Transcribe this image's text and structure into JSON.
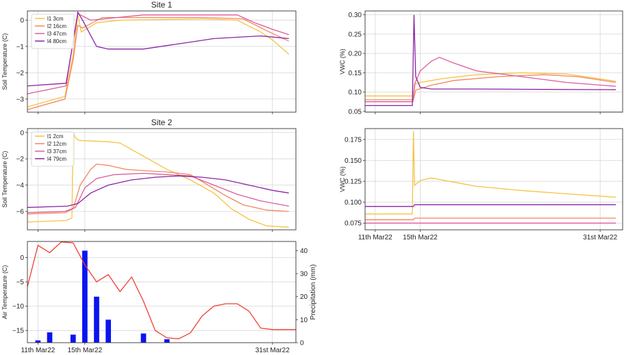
{
  "figure": {
    "panels": [
      {
        "id": "p1",
        "title": "Site 1",
        "ylabel": "Soil Temperature (C)",
        "yticks": [
          "0",
          "−1",
          "−2",
          "−3"
        ]
      },
      {
        "id": "p2",
        "title": "",
        "ylabel": "VWC (%)",
        "yticks": [
          "0.30",
          "0.25",
          "0.20",
          "0.15",
          "0.10",
          "0.05"
        ]
      },
      {
        "id": "p3",
        "title": "Site 2",
        "ylabel": "Soil Temperature (C)",
        "yticks": [
          "0",
          "−2",
          "−4",
          "−6"
        ]
      },
      {
        "id": "p4",
        "title": "",
        "ylabel": "VWC (%)",
        "yticks": [
          "0.175",
          "0.150",
          "0.125",
          "0.100",
          "0.075"
        ],
        "xticks": [
          "11th Mar22",
          "15th Mar22",
          "31st Mar22"
        ]
      },
      {
        "id": "p5",
        "title": "",
        "ylabel": "Air Temperature (C)",
        "ylabel_right": "Precipitation (mm)",
        "yticks": [
          "0",
          "−5",
          "−10",
          "−15"
        ],
        "yticks_right": [
          "40",
          "30",
          "20",
          "10",
          "0"
        ],
        "xticks": [
          "11th Mar22",
          "15th Mar22",
          "31st Mar22"
        ]
      }
    ]
  },
  "chart_data": [
    {
      "type": "line",
      "title": "Site 1",
      "xlabel": "",
      "ylabel": "Soil Temperature (C)",
      "ylim": [
        -3.5,
        0.35
      ],
      "xlim": [
        10.1,
        33
      ],
      "grid": true,
      "legend": "top-left",
      "series": [
        {
          "name": "l1 3cm",
          "color": "#f5c242",
          "points": [
            [
              10.1,
              -3.3
            ],
            [
              13.3,
              -2.9
            ],
            [
              14.0,
              -1.3
            ],
            [
              14.4,
              0.2
            ],
            [
              14.7,
              -0.45
            ],
            [
              16.0,
              -0.1
            ],
            [
              18.0,
              0.0
            ],
            [
              25.0,
              0.05
            ],
            [
              28.0,
              0.0
            ],
            [
              30.0,
              -0.45
            ],
            [
              31.0,
              -0.75
            ],
            [
              32.4,
              -1.3
            ]
          ]
        },
        {
          "name": "l2 16cm",
          "color": "#f4845f",
          "points": [
            [
              10.1,
              -3.4
            ],
            [
              13.3,
              -3.0
            ],
            [
              14.0,
              -1.5
            ],
            [
              14.4,
              -0.2
            ],
            [
              14.8,
              -0.3
            ],
            [
              16.5,
              0.1
            ],
            [
              25.0,
              0.1
            ],
            [
              28.5,
              0.05
            ],
            [
              30.5,
              -0.4
            ],
            [
              32.4,
              -0.8
            ]
          ]
        },
        {
          "name": "l3 47cm",
          "color": "#dc5a99",
          "points": [
            [
              10.1,
              -2.8
            ],
            [
              13.4,
              -2.5
            ],
            [
              14.1,
              -0.5
            ],
            [
              14.4,
              0.25
            ],
            [
              15.5,
              0.0
            ],
            [
              20.0,
              0.2
            ],
            [
              28.0,
              0.2
            ],
            [
              29.5,
              -0.1
            ],
            [
              31.0,
              -0.35
            ],
            [
              32.4,
              -0.55
            ]
          ]
        },
        {
          "name": "l4 80cm",
          "color": "#8b22a6",
          "points": [
            [
              10.1,
              -2.5
            ],
            [
              13.4,
              -2.4
            ],
            [
              14.2,
              -0.3
            ],
            [
              14.4,
              0.3
            ],
            [
              14.8,
              0.0
            ],
            [
              16.0,
              -1.0
            ],
            [
              17.0,
              -1.1
            ],
            [
              20.0,
              -1.1
            ],
            [
              23.0,
              -0.9
            ],
            [
              26.0,
              -0.7
            ],
            [
              30.0,
              -0.6
            ],
            [
              32.4,
              -0.7
            ]
          ]
        }
      ]
    },
    {
      "type": "line",
      "title": "",
      "xlabel": "",
      "ylabel": "VWC (%)",
      "ylim": [
        0.048,
        0.31
      ],
      "xlim": [
        10.1,
        33
      ],
      "grid": true,
      "series": [
        {
          "color": "#f5c242",
          "points": [
            [
              10.1,
              0.09
            ],
            [
              14.4,
              0.09
            ],
            [
              14.55,
              0.12
            ],
            [
              15.0,
              0.125
            ],
            [
              17.0,
              0.135
            ],
            [
              20.0,
              0.145
            ],
            [
              24.0,
              0.15
            ],
            [
              28.0,
              0.147
            ],
            [
              32.4,
              0.128
            ]
          ]
        },
        {
          "color": "#f4845f",
          "points": [
            [
              10.1,
              0.08
            ],
            [
              14.4,
              0.08
            ],
            [
              14.6,
              0.105
            ],
            [
              16.0,
              0.118
            ],
            [
              18.0,
              0.13
            ],
            [
              22.0,
              0.14
            ],
            [
              26.0,
              0.145
            ],
            [
              29.0,
              0.14
            ],
            [
              32.4,
              0.125
            ]
          ]
        },
        {
          "color": "#dc5a99",
          "points": [
            [
              10.1,
              0.075
            ],
            [
              14.35,
              0.075
            ],
            [
              14.5,
              0.12
            ],
            [
              15.0,
              0.155
            ],
            [
              16.0,
              0.18
            ],
            [
              16.7,
              0.19
            ],
            [
              18.0,
              0.175
            ],
            [
              20.0,
              0.155
            ],
            [
              24.0,
              0.14
            ],
            [
              28.0,
              0.125
            ],
            [
              32.4,
              0.115
            ]
          ]
        },
        {
          "color": "#8b22a6",
          "points": [
            [
              10.1,
              0.065
            ],
            [
              14.3,
              0.065
            ],
            [
              14.45,
              0.3
            ],
            [
              14.6,
              0.14
            ],
            [
              15.0,
              0.112
            ],
            [
              16.0,
              0.108
            ],
            [
              20.0,
              0.108
            ],
            [
              26.0,
              0.107
            ],
            [
              32.4,
              0.106
            ]
          ]
        }
      ]
    },
    {
      "type": "line",
      "title": "Site 2",
      "xlabel": "",
      "ylabel": "Soil Temperature (C)",
      "ylim": [
        -7.4,
        0.3
      ],
      "xlim": [
        10.1,
        33
      ],
      "grid": true,
      "legend": "top-left",
      "series": [
        {
          "name": "l1 2cm",
          "color": "#f5c242",
          "points": [
            [
              10.1,
              -6.8
            ],
            [
              13.4,
              -6.7
            ],
            [
              13.9,
              -6.5
            ],
            [
              14.0,
              0.0
            ],
            [
              14.2,
              -0.4
            ],
            [
              14.5,
              -0.6
            ],
            [
              17.0,
              -0.7
            ],
            [
              18.0,
              -0.8
            ],
            [
              20.0,
              -1.8
            ],
            [
              22.0,
              -2.8
            ],
            [
              24.0,
              -3.6
            ],
            [
              26.0,
              -4.6
            ],
            [
              27.5,
              -5.8
            ],
            [
              29.0,
              -6.6
            ],
            [
              30.5,
              -7.1
            ],
            [
              32.4,
              -7.2
            ]
          ]
        },
        {
          "name": "l2 12cm",
          "color": "#f4845f",
          "points": [
            [
              10.1,
              -6.2
            ],
            [
              13.3,
              -6.1
            ],
            [
              14.0,
              -5.8
            ],
            [
              14.6,
              -4.0
            ],
            [
              15.5,
              -2.8
            ],
            [
              16.0,
              -2.4
            ],
            [
              17.0,
              -2.5
            ],
            [
              18.5,
              -2.8
            ],
            [
              20.0,
              -2.9
            ],
            [
              22.0,
              -3.0
            ],
            [
              24.0,
              -3.2
            ],
            [
              25.5,
              -4.0
            ],
            [
              27.0,
              -4.8
            ],
            [
              28.5,
              -5.5
            ],
            [
              30.5,
              -5.9
            ],
            [
              32.4,
              -6.0
            ]
          ]
        },
        {
          "name": "l3 37cm",
          "color": "#dc5a99",
          "points": [
            [
              10.1,
              -6.1
            ],
            [
              13.3,
              -6.0
            ],
            [
              14.2,
              -5.7
            ],
            [
              15.0,
              -4.2
            ],
            [
              16.0,
              -3.5
            ],
            [
              17.5,
              -3.2
            ],
            [
              20.0,
              -3.1
            ],
            [
              22.0,
              -3.2
            ],
            [
              24.0,
              -3.3
            ],
            [
              26.0,
              -4.0
            ],
            [
              28.0,
              -4.7
            ],
            [
              30.0,
              -5.2
            ],
            [
              32.4,
              -5.6
            ]
          ]
        },
        {
          "name": "l4 79cm",
          "color": "#8b22a6",
          "points": [
            [
              10.1,
              -5.7
            ],
            [
              13.5,
              -5.6
            ],
            [
              14.4,
              -5.4
            ],
            [
              15.5,
              -4.6
            ],
            [
              17.0,
              -4.0
            ],
            [
              19.0,
              -3.6
            ],
            [
              21.0,
              -3.4
            ],
            [
              23.0,
              -3.3
            ],
            [
              25.0,
              -3.4
            ],
            [
              27.0,
              -3.6
            ],
            [
              29.0,
              -4.0
            ],
            [
              31.0,
              -4.4
            ],
            [
              32.4,
              -4.6
            ]
          ]
        }
      ]
    },
    {
      "type": "line",
      "title": "",
      "xlabel": "",
      "ylabel": "VWC (%)",
      "ylim": [
        0.067,
        0.188
      ],
      "xlim": [
        10.1,
        33
      ],
      "grid": true,
      "xticks": [
        {
          "label": "11th Mar22",
          "x": 11
        },
        {
          "label": "15th Mar22",
          "x": 15
        },
        {
          "label": "31st Mar22",
          "x": 31
        }
      ],
      "series": [
        {
          "color": "#f5c242",
          "points": [
            [
              10.1,
              0.086
            ],
            [
              14.3,
              0.086
            ],
            [
              14.4,
              0.185
            ],
            [
              14.5,
              0.12
            ],
            [
              15.0,
              0.126
            ],
            [
              16.0,
              0.129
            ],
            [
              18.0,
              0.124
            ],
            [
              20.0,
              0.119
            ],
            [
              24.0,
              0.114
            ],
            [
              28.0,
              0.11
            ],
            [
              32.4,
              0.106
            ]
          ]
        },
        {
          "color": "#f4845f",
          "points": [
            [
              10.1,
              0.079
            ],
            [
              14.4,
              0.079
            ],
            [
              14.5,
              0.081
            ],
            [
              20.0,
              0.081
            ],
            [
              26.0,
              0.081
            ],
            [
              32.4,
              0.081
            ]
          ]
        },
        {
          "color": "#dc5a99",
          "points": [
            [
              10.1,
              0.075
            ],
            [
              32.4,
              0.075
            ]
          ]
        },
        {
          "color": "#8b22a6",
          "points": [
            [
              10.1,
              0.095
            ],
            [
              14.4,
              0.095
            ],
            [
              14.5,
              0.097
            ],
            [
              20.0,
              0.097
            ],
            [
              32.4,
              0.097
            ]
          ]
        }
      ]
    },
    {
      "type": "bar",
      "title": "",
      "xlabel": "",
      "ylabel": "Air Temperature (C)",
      "ylabel_right": "Precipitation (mm)",
      "ylim": [
        -17.5,
        3.3
      ],
      "ylim_right": [
        0,
        44
      ],
      "xlim": [
        10.1,
        33
      ],
      "grid": true,
      "xticks": [
        {
          "label": "11th Mar22",
          "x": 11
        },
        {
          "label": "15th Mar22",
          "x": 15
        },
        {
          "label": "31st Mar22",
          "x": 31
        }
      ],
      "temperature": {
        "color": "#f03c30",
        "x": [
          10.1,
          11,
          12,
          13,
          14,
          15,
          16,
          17,
          18,
          19,
          20,
          21,
          22,
          23,
          24,
          25,
          26,
          27,
          28,
          29,
          30,
          31,
          32,
          33
        ],
        "values": [
          -6,
          2.5,
          1,
          3.2,
          3,
          -1.5,
          -5,
          -3.5,
          -7,
          -4,
          -9,
          -15,
          -16.5,
          -16.7,
          -15.5,
          -12,
          -10,
          -9.5,
          -9.5,
          -11,
          -14.5,
          -14.8,
          -14.8,
          -14.8
        ]
      },
      "precipitation": {
        "color": "#0a14f0",
        "x": [
          11,
          12,
          13,
          14,
          15,
          16,
          17,
          18,
          19,
          20,
          21,
          22
        ],
        "values": [
          1,
          4.5,
          0,
          3.5,
          40,
          20,
          10,
          0,
          0,
          4,
          0,
          1.5
        ]
      }
    }
  ]
}
